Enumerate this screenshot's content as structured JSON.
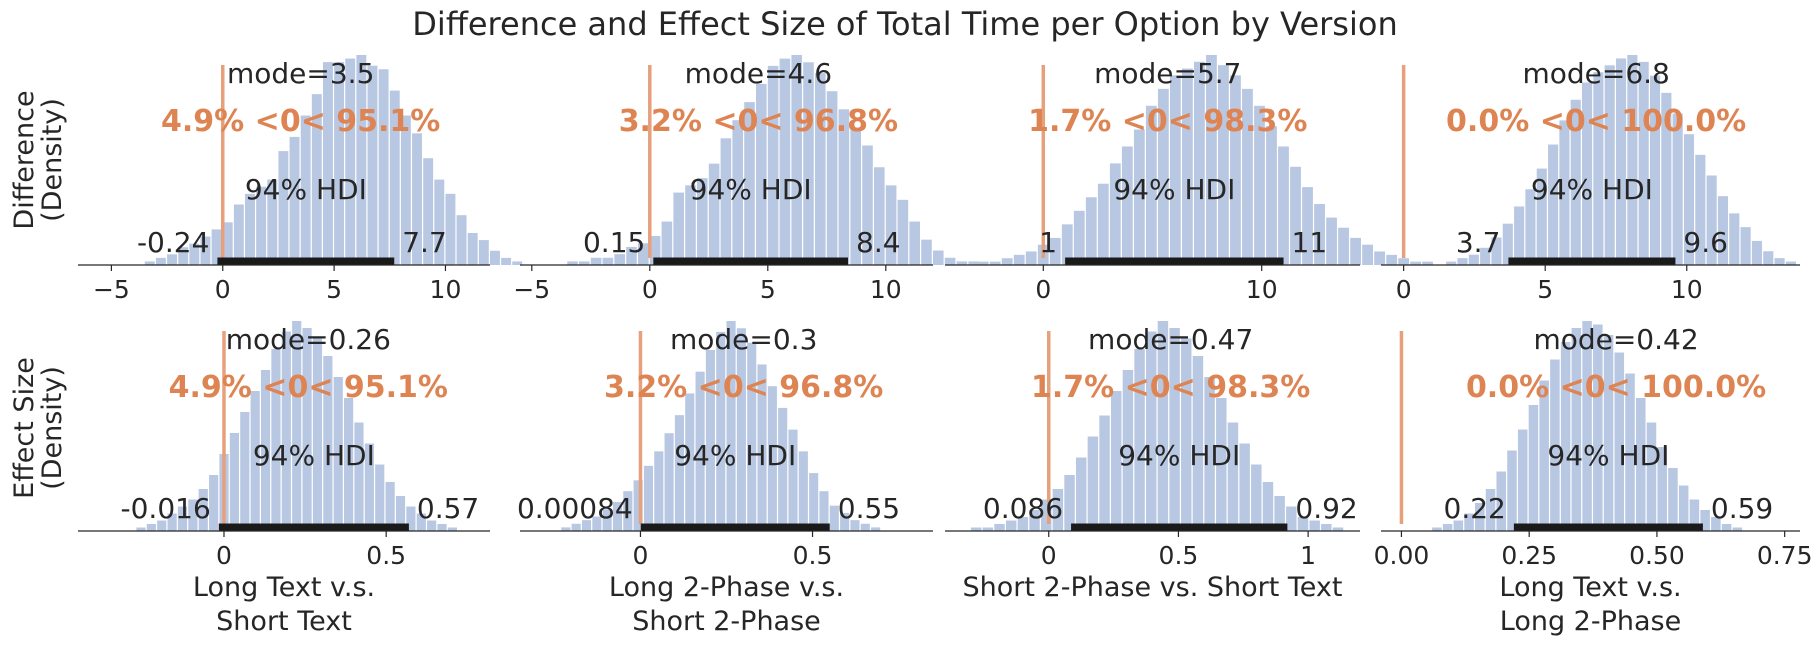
{
  "title": "Difference and Effect Size of Total Time per Option by Version",
  "row_labels": [
    [
      "Difference",
      "(Density)"
    ],
    [
      "Effect Size",
      "(Density)"
    ]
  ],
  "column_labels": [
    [
      "Long Text v.s.",
      "Short Text"
    ],
    [
      "Long 2-Phase v.s.",
      "Short 2-Phase"
    ],
    [
      "Short 2-Phase vs. Short Text"
    ],
    [
      "Long Text v.s.",
      "Long 2-Phase"
    ]
  ],
  "hdi_label": "94% HDI",
  "colors": {
    "histogram": "#b9c8e2",
    "reference_line": "#e6a07c",
    "probability_text": "#dd8452",
    "hdi_bar": "#1a1a1a",
    "axis": "#262626"
  },
  "chart_data": [
    {
      "type": "histogram",
      "row": "Difference",
      "xlim": [
        -6.5,
        12
      ],
      "xticks": [
        -5,
        0,
        5,
        10
      ],
      "mode_label": "mode=3.5",
      "mode": 3.5,
      "hdi": [
        -0.24,
        7.7
      ],
      "hdi_labels": [
        "-0.24",
        "7.7"
      ],
      "ref": 0,
      "prob_text": "4.9% <0< 95.1%",
      "bins": {
        "start": -3.5,
        "width": 0.5,
        "heights": [
          1,
          2,
          3,
          5,
          6,
          8,
          10,
          12,
          17,
          20,
          22,
          24,
          32,
          36,
          42,
          48,
          57,
          57,
          58,
          59,
          56,
          55,
          49,
          42,
          37,
          30,
          24,
          20,
          14,
          9,
          7,
          4,
          2,
          1
        ]
      }
    },
    {
      "type": "histogram",
      "row": "Difference",
      "xlim": [
        -5.5,
        12
      ],
      "xticks": [
        -5,
        0,
        5,
        10
      ],
      "mode_label": "mode=4.6",
      "mode": 4.6,
      "hdi": [
        0.15,
        8.4
      ],
      "hdi_labels": [
        "0.15",
        "8.4"
      ],
      "ref": 0,
      "prob_text": "3.2% <0< 96.8%",
      "bins": {
        "start": -3.5,
        "width": 0.5,
        "heights": [
          1,
          1,
          2,
          2,
          3,
          5,
          6,
          8,
          12,
          20,
          22,
          24,
          28,
          35,
          40,
          45,
          50,
          55,
          57,
          58,
          56,
          53,
          48,
          43,
          38,
          33,
          27,
          22,
          18,
          12,
          7,
          4,
          2,
          1,
          1
        ]
      }
    },
    {
      "type": "histogram",
      "row": "Difference",
      "xlim": [
        -4.5,
        14.5
      ],
      "xticks": [
        0,
        10
      ],
      "mode_label": "mode=5.7",
      "mode": 5.7,
      "hdi": [
        1,
        11
      ],
      "hdi_labels": [
        "1",
        "11"
      ],
      "ref": 0,
      "prob_text": "1.7% <0< 98.3%",
      "bins": {
        "start": -3,
        "width": 0.55,
        "heights": [
          1,
          1,
          2,
          3,
          4,
          6,
          8,
          12,
          16,
          20,
          24,
          30,
          35,
          40,
          47,
          52,
          56,
          58,
          60,
          62,
          59,
          56,
          52,
          47,
          41,
          35,
          29,
          23,
          18,
          14,
          11,
          8,
          6,
          4,
          3,
          2,
          1,
          1
        ]
      }
    },
    {
      "type": "histogram",
      "row": "Difference",
      "xlim": [
        -0.8,
        14
      ],
      "xticks": [
        0,
        5,
        10
      ],
      "mode_label": "mode=6.8",
      "mode": 6.8,
      "hdi": [
        3.7,
        9.6
      ],
      "hdi_labels": [
        "3.7",
        "9.6"
      ],
      "ref": 0,
      "prob_text": "0.0% <0< 100.0%",
      "bins": {
        "start": 1.5,
        "width": 0.4,
        "heights": [
          1,
          2,
          3,
          5,
          8,
          12,
          17,
          22,
          28,
          35,
          42,
          48,
          53,
          56,
          58,
          60,
          61,
          59,
          55,
          50,
          44,
          38,
          32,
          26,
          20,
          15,
          11,
          7,
          4,
          2,
          1
        ]
      }
    },
    {
      "type": "histogram",
      "row": "Effect Size",
      "xlim": [
        -0.45,
        0.82
      ],
      "xticks": [
        0.0,
        0.5
      ],
      "mode_label": "mode=0.26",
      "mode": 0.26,
      "hdi": [
        -0.016,
        0.57
      ],
      "hdi_labels": [
        "-0.016",
        "0.57"
      ],
      "ref": 0,
      "prob_text": "4.9% <0< 95.1%",
      "bins": {
        "start": -0.27,
        "width": 0.032,
        "heights": [
          1,
          2,
          3,
          5,
          7,
          9,
          12,
          16,
          22,
          28,
          34,
          40,
          46,
          52,
          57,
          60,
          58,
          55,
          50,
          44,
          38,
          31,
          25,
          19,
          14,
          10,
          7,
          5,
          3,
          2,
          1
        ]
      }
    },
    {
      "type": "histogram",
      "row": "Effect Size",
      "xlim": [
        -0.35,
        0.85
      ],
      "xticks": [
        0.0,
        0.5
      ],
      "mode_label": "mode=0.3",
      "mode": 0.3,
      "hdi": [
        0.00084,
        0.55
      ],
      "hdi_labels": [
        "0.00084",
        "0.55"
      ],
      "ref": 0,
      "prob_text": "3.2% <0< 96.8%",
      "bins": {
        "start": -0.23,
        "width": 0.03,
        "heights": [
          1,
          2,
          3,
          4,
          6,
          8,
          11,
          14,
          18,
          22,
          27,
          32,
          38,
          44,
          50,
          55,
          58,
          56,
          52,
          46,
          40,
          34,
          28,
          22,
          16,
          11,
          7,
          5,
          3,
          2,
          1
        ]
      }
    },
    {
      "type": "histogram",
      "row": "Effect Size",
      "xlim": [
        -0.4,
        1.2
      ],
      "xticks": [
        0.0,
        0.5,
        1.0
      ],
      "mode_label": "mode=0.47",
      "mode": 0.47,
      "hdi": [
        0.086,
        0.92
      ],
      "hdi_labels": [
        "0.086",
        "0.92"
      ],
      "ref": 0,
      "prob_text": "1.7% <0< 98.3%",
      "bins": {
        "start": -0.3,
        "width": 0.045,
        "heights": [
          1,
          1,
          2,
          3,
          4,
          6,
          9,
          12,
          16,
          21,
          27,
          33,
          40,
          46,
          52,
          57,
          60,
          58,
          55,
          50,
          44,
          38,
          31,
          25,
          19,
          14,
          10,
          7,
          4,
          3,
          2,
          1
        ]
      }
    },
    {
      "type": "histogram",
      "row": "Effect Size",
      "xlim": [
        -0.04,
        0.78
      ],
      "xticks": [
        0.0,
        0.25,
        0.5,
        0.75
      ],
      "xtick_labels": [
        "0.00",
        "0.25",
        "0.50",
        "0.75"
      ],
      "mode_label": "mode=0.42",
      "mode": 0.42,
      "hdi": [
        0.22,
        0.59
      ],
      "hdi_labels": [
        "0.22",
        "0.59"
      ],
      "ref": 0,
      "prob_text": "0.0% <0< 100.0%",
      "bins": {
        "start": 0.06,
        "width": 0.021,
        "heights": [
          1,
          2,
          3,
          5,
          8,
          12,
          17,
          23,
          29,
          36,
          43,
          49,
          54,
          58,
          60,
          59,
          56,
          51,
          45,
          38,
          31,
          24,
          18,
          13,
          9,
          6,
          4,
          2,
          1
        ]
      }
    }
  ]
}
